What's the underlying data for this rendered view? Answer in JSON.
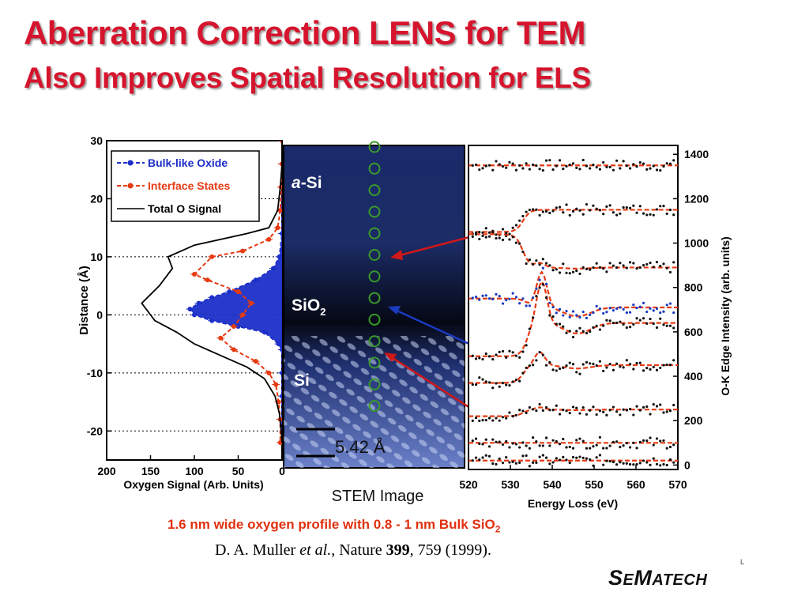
{
  "slide": {
    "title_line1": "Aberration Correction LENS for TEM",
    "title_line2": "Also Improves Spatial Resolution for ELS",
    "caption_prefix": "1.6 nm wide oxygen profile with 0.8 - 1 nm Bulk SiO",
    "caption_sub": "2",
    "citation": {
      "authors": "D. A. Muller ",
      "etal": "et al.",
      "journal": ", Nature ",
      "volume": "399",
      "pages": ", 759 (1999)."
    },
    "logo": {
      "cap1": "S",
      "rest1": "E",
      "cap2": "M",
      "rest2": "ATECH"
    },
    "corner_mark": "L"
  },
  "colors": {
    "title": "#d6142d",
    "bulk": "#1c2fc8",
    "interface": "#e63a12",
    "total": "#000000",
    "arrow_red": "#d01818",
    "arrow_blue": "#1a3ac0",
    "circle": "#3a9a2a"
  },
  "stem": {
    "caption": "STEM Image",
    "labels": {
      "a_si_italic": "a",
      "a_si_rest": "-Si",
      "sio2_main": "SiO",
      "sio2_sub": "2",
      "si": "Si"
    },
    "scale": "5.42 Å"
  },
  "chart_data": [
    {
      "type": "line",
      "xlabel": "Oxygen Signal (Arb. Units)",
      "ylabel": "Distance (Å)",
      "xlim": [
        200,
        0
      ],
      "ylim": [
        -25,
        30
      ],
      "xticks": [
        "200",
        "150",
        "100",
        "50",
        "0"
      ],
      "yticks": [
        "30",
        "20",
        "10",
        "0",
        "-10",
        "-20"
      ],
      "legend": [
        "Bulk-like Oxide",
        "Interface States",
        "Total O Signal"
      ],
      "legend_position": "top-left",
      "series": [
        {
          "name": "Bulk-like Oxide",
          "color": "#1c2fc8",
          "style": "dashed-markers-filled",
          "x": [
            0,
            0,
            0,
            0,
            0,
            3,
            10,
            30,
            60,
            80,
            95,
            105,
            100,
            80,
            50,
            20,
            4,
            0,
            0,
            0,
            0,
            0
          ],
          "y": [
            30,
            26,
            22,
            18,
            14,
            10,
            8,
            6,
            4,
            3,
            2,
            1,
            0,
            -1,
            -2,
            -3,
            -5,
            -6,
            -10,
            -14,
            -18,
            -22
          ]
        },
        {
          "name": "Interface States",
          "color": "#e63a12",
          "style": "dashed-markers",
          "x": [
            0,
            0,
            1,
            2,
            5,
            15,
            45,
            80,
            100,
            85,
            50,
            35,
            45,
            55,
            70,
            55,
            30,
            15,
            7,
            4,
            2,
            2
          ],
          "y": [
            30,
            26,
            22,
            18,
            15,
            13,
            11,
            10,
            7,
            6,
            4,
            2,
            0,
            -2,
            -4,
            -6,
            -8,
            -10,
            -12,
            -15,
            -18,
            -22
          ]
        },
        {
          "name": "Total O Signal",
          "color": "#000000",
          "style": "solid",
          "x": [
            0,
            0,
            2,
            5,
            15,
            40,
            100,
            130,
            125,
            140,
            160,
            145,
            120,
            100,
            70,
            40,
            20,
            8,
            3,
            1,
            0
          ],
          "y": [
            30,
            26,
            22,
            18,
            15,
            14,
            12,
            10,
            8,
            5,
            2,
            -1,
            -3,
            -5,
            -7,
            -9,
            -11,
            -14,
            -17,
            -20,
            -22
          ]
        }
      ]
    },
    {
      "type": "scatter",
      "xlabel": "Energy Loss (eV)",
      "ylabel": "O-K Edge Intensity (arb. units)",
      "xlim": [
        520,
        570
      ],
      "ylim": [
        -20,
        1440
      ],
      "xticks": [
        "520",
        "530",
        "540",
        "550",
        "560",
        "570"
      ],
      "yticks": [
        "1400",
        "1200",
        "1000",
        "800",
        "600",
        "400",
        "200",
        "0"
      ],
      "traces": [
        {
          "offset": 1350,
          "edge": 0,
          "peak": 0,
          "edge_pos": 534,
          "peak_pos": 537
        },
        {
          "offset": 1050,
          "edge": 100,
          "peak": 0,
          "edge_pos": 533,
          "peak_pos": 537
        },
        {
          "offset": 1040,
          "edge": -150,
          "peak": 20,
          "edge_pos": 533,
          "peak_pos": 537
        },
        {
          "offset": 750,
          "edge": -40,
          "peak": 160,
          "edge_pos": 534,
          "peak_pos": 537.5
        },
        {
          "offset": 490,
          "edge": 150,
          "peak": 190,
          "edge_pos": 534,
          "peak_pos": 537.5
        },
        {
          "offset": 370,
          "edge": 80,
          "peak": 60,
          "edge_pos": 533,
          "peak_pos": 537
        },
        {
          "offset": 220,
          "edge": 30,
          "peak": 10,
          "edge_pos": 533,
          "peak_pos": 537
        },
        {
          "offset": 100,
          "edge": 0,
          "peak": 0,
          "edge_pos": 533,
          "peak_pos": 537
        },
        {
          "offset": 20,
          "edge": 0,
          "peak": 0,
          "edge_pos": 533,
          "peak_pos": 537
        }
      ]
    }
  ]
}
